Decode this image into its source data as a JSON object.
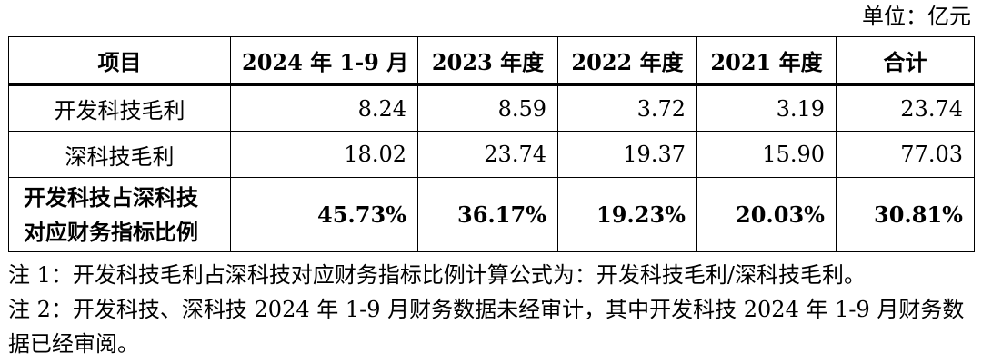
{
  "unit_label": "单位：亿元",
  "table": {
    "headers": [
      "项目",
      "2024 年 1-9 月",
      "2023 年度",
      "2022 年度",
      "2021 年度",
      "合计"
    ],
    "rows": [
      {
        "label": "开发科技毛利",
        "values": [
          "8.24",
          "8.59",
          "3.72",
          "3.19",
          "23.74"
        ]
      },
      {
        "label": "深科技毛利",
        "values": [
          "18.02",
          "23.74",
          "19.37",
          "15.90",
          "77.03"
        ]
      },
      {
        "label_line1": "开发科技占深科技",
        "label_line2": "对应财务指标比例",
        "values": [
          "45.73%",
          "36.17%",
          "19.23%",
          "20.03%",
          "30.81%"
        ]
      }
    ]
  },
  "notes": [
    "注 1：开发科技毛利占深科技对应财务指标比例计算公式为：开发科技毛利/深科技毛利。",
    "注 2：开发科技、深科技 2024 年 1-9 月财务数据未经审计，其中开发科技 2024 年 1-9 月财务数据已经审阅。"
  ]
}
